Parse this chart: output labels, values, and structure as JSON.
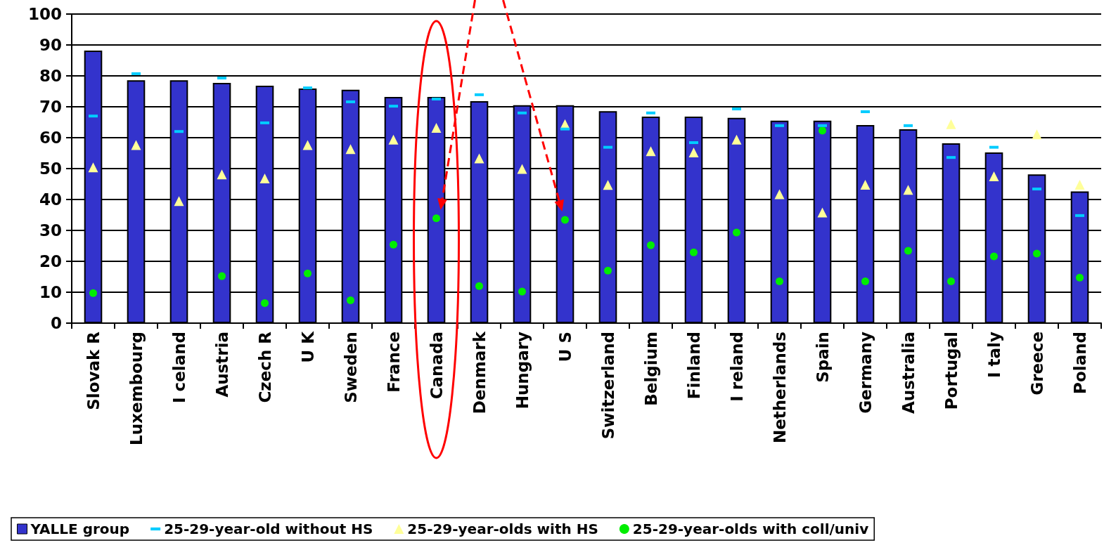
{
  "chart_data": {
    "type": "bar",
    "categories": [
      "Slovak R",
      "Luxembourg",
      "I celand",
      "Austria",
      "Czech R",
      "U K",
      "Sweden",
      "France",
      "Canada",
      "Denmark",
      "Hungary",
      "U S",
      "Switzerland",
      "Belgium",
      "Finland",
      "I reland",
      "Netherlands",
      "Spain",
      "Germany",
      "Australia",
      "Portugal",
      "I taly",
      "Greece",
      "Poland"
    ],
    "series": [
      {
        "name": "YALLE group",
        "color": "#3333cc",
        "values": [
          88.2,
          78.6,
          78.6,
          77.7,
          76.8,
          75.9,
          75.5,
          73.2,
          73.2,
          71.8,
          70.5,
          70.5,
          68.6,
          66.8,
          66.8,
          66.4,
          65.5,
          65.5,
          64.1,
          62.7,
          58.2,
          55.2,
          48.1,
          42.6
        ]
      },
      {
        "name": "25-29-year-old without HS",
        "type": "scatter",
        "marker": "square",
        "color": "#00ccff",
        "values": [
          67,
          80.7,
          62,
          79.3,
          64.8,
          76.1,
          71.6,
          70.2,
          72.5,
          73.9,
          68,
          62.8,
          56.9,
          68,
          58.4,
          69.3,
          63.9,
          63.9,
          68.4,
          63.9,
          53.6,
          56.9,
          43.4,
          34.8
        ]
      },
      {
        "name": "25-29-year-olds with HS",
        "type": "scatter",
        "marker": "triangle",
        "color": "#ffff99",
        "values": [
          50.4,
          57.6,
          39.5,
          48.1,
          46.8,
          57.6,
          56.3,
          59.4,
          63.2,
          53.3,
          49.9,
          64.4,
          44.7,
          55.6,
          55.2,
          59.4,
          41.7,
          35.8,
          44.8,
          43.1,
          64.4,
          47.5,
          61.1,
          44.8
        ]
      },
      {
        "name": "25-29-year-olds with coll/univ",
        "type": "scatter",
        "marker": "circle",
        "color": "#00ee00",
        "values": [
          9.7,
          null,
          null,
          15.2,
          6.5,
          16.1,
          7.4,
          25.4,
          33.9,
          12,
          10.2,
          33.4,
          17,
          25.2,
          22.9,
          29.3,
          13.5,
          62.3,
          13.5,
          23.4,
          13.5,
          21.6,
          22.5,
          14.7
        ]
      }
    ],
    "ylim": [
      0,
      100
    ],
    "yticks": [
      0,
      10,
      20,
      30,
      40,
      50,
      60,
      70,
      80,
      90,
      100
    ],
    "grid": "y",
    "legend": "bottom"
  }
}
